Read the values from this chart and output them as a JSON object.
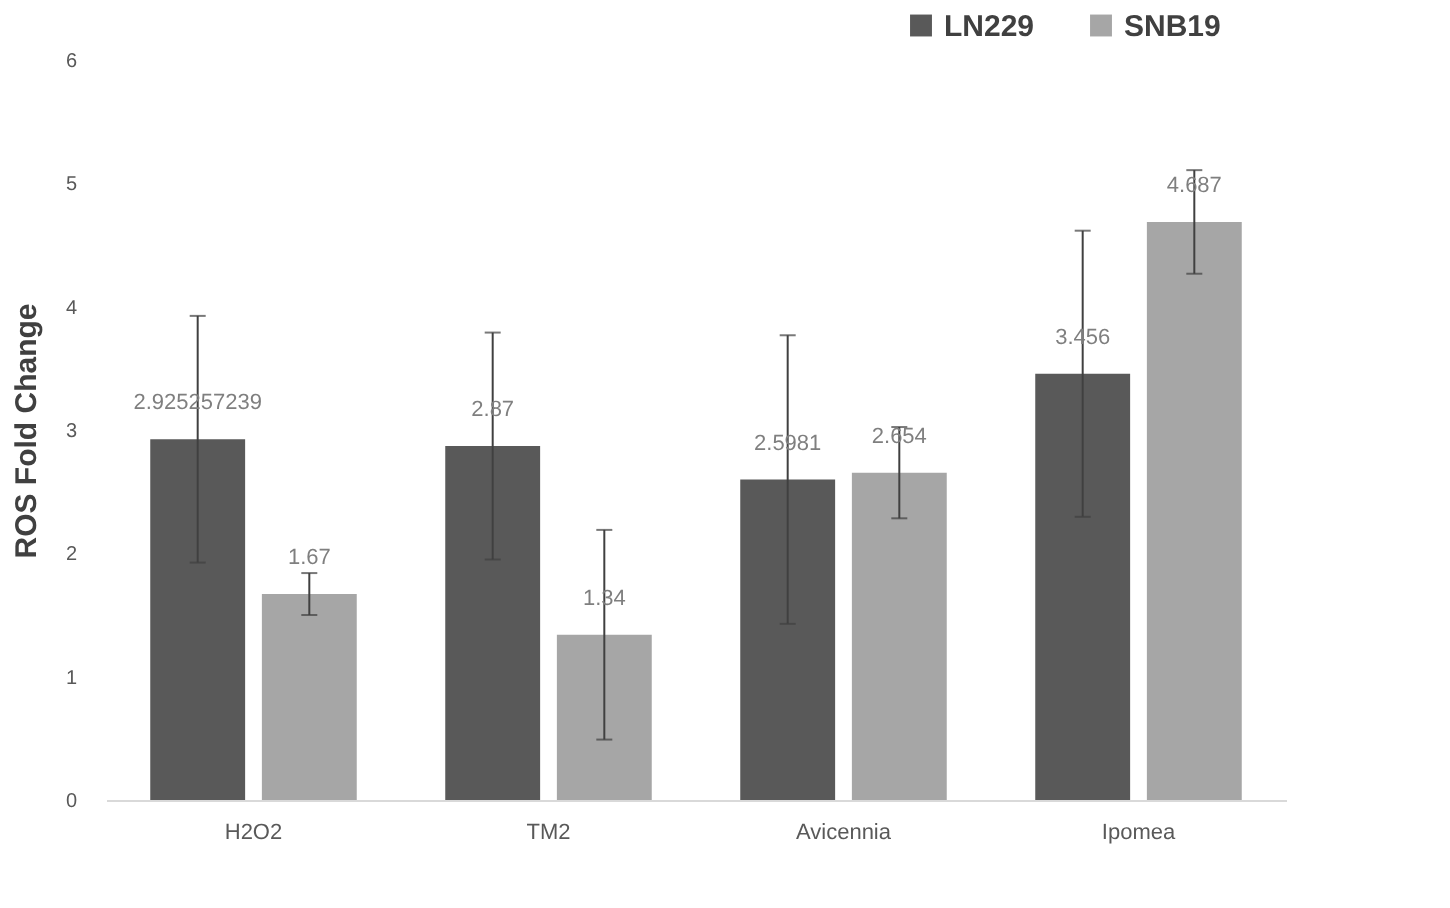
{
  "chart_data": {
    "type": "bar",
    "ylabel": "ROS Fold Change",
    "categories": [
      "H2O2",
      "TM2",
      "Avicennia",
      "Ipomea"
    ],
    "series": [
      {
        "name": "LN229",
        "color": "#595959",
        "values": [
          2.925257239,
          2.87,
          2.5981,
          3.456
        ],
        "errors": [
          1.0,
          0.92,
          1.17,
          1.16
        ]
      },
      {
        "name": "SNB19",
        "color": "#a6a6a6",
        "values": [
          1.67,
          1.34,
          2.654,
          4.687
        ],
        "errors": [
          0.17,
          0.85,
          0.37,
          0.42
        ]
      }
    ],
    "ylim": [
      0,
      6
    ],
    "yticks": [
      0,
      1,
      2,
      3,
      4,
      5,
      6
    ],
    "grid": false,
    "legend": "top right",
    "data_labels": true
  }
}
